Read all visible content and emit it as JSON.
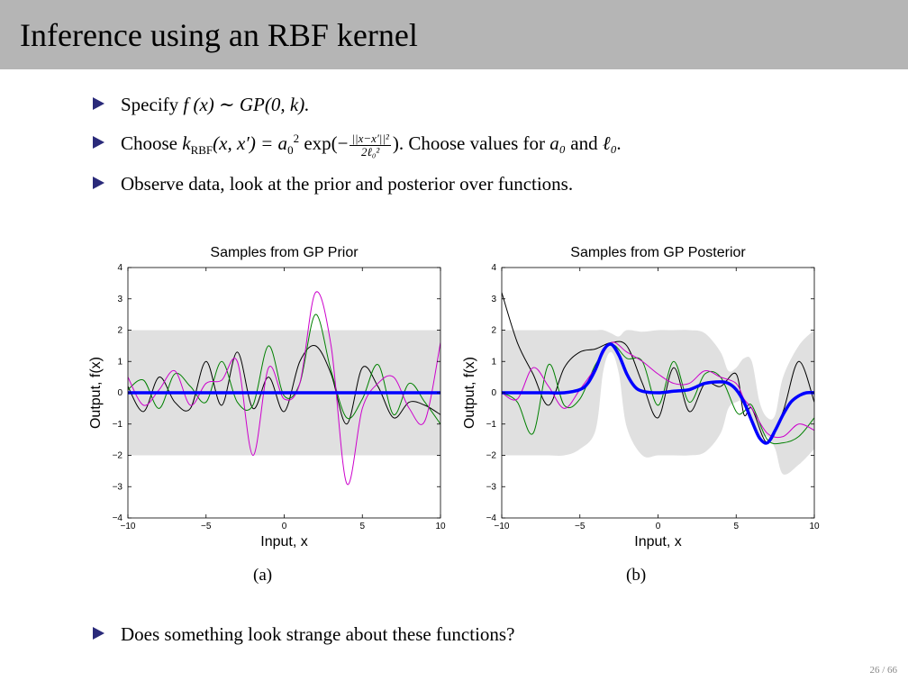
{
  "slide": {
    "title": "Inference using an RBF kernel",
    "page_number": "26 / 66"
  },
  "bullets": {
    "b1_prefix": "Specify ",
    "b1_math": "f (x) ∼ GP(0, k).",
    "b2_prefix": "Choose ",
    "b2_math_a": "k",
    "b2_sub": "RBF",
    "b2_math_b": "(x, x′) = a",
    "b2_sub0": "0",
    "b2_sup2": "2",
    "b2_math_c": " exp(−",
    "b2_frac_num": "||x−x′||²",
    "b2_frac_den": "2ℓ₀²",
    "b2_suffix": "). Choose values for ",
    "b2_a0": "a₀",
    "b2_and": " and ",
    "b2_l0": "ℓ₀.",
    "b3": "Observe data, look at the prior and posterior over functions.",
    "b4": "Does something look strange about these functions?"
  },
  "captions": {
    "a": "(a)",
    "b": "(b)"
  },
  "colors": {
    "header": "#b5b5b5",
    "band": "#e0e0e0",
    "mean": "#0000ff",
    "sample_black": "#000000",
    "sample_green": "#008000",
    "sample_magenta": "#cc00cc",
    "bullet_arrow": "#2a2a7a"
  },
  "chart_data": [
    {
      "type": "line",
      "title": "Samples from GP Prior",
      "xlabel": "Input, x",
      "ylabel": "Output, f(x)",
      "xlim": [
        -10,
        10
      ],
      "ylim": [
        -4,
        4
      ],
      "xticks": [
        "−10",
        "−5",
        "0",
        "5",
        "10"
      ],
      "yticks": [
        "−4",
        "−3",
        "−2",
        "−1",
        "0",
        "1",
        "2",
        "3",
        "4"
      ],
      "band": {
        "lower": -2,
        "upper": 2
      },
      "series": [
        {
          "color": "blue",
          "x": [
            -10,
            10
          ],
          "y": [
            0,
            0
          ]
        },
        {
          "color": "black",
          "x": [
            -10,
            -9,
            -8,
            -7,
            -6,
            -5,
            -4,
            -3,
            -2,
            -1,
            0,
            1,
            2,
            3,
            4,
            5,
            6,
            7,
            8,
            9,
            10
          ],
          "y": [
            0.2,
            -0.6,
            0.5,
            -0.3,
            -0.5,
            1.0,
            -0.4,
            1.3,
            -0.5,
            0.5,
            -0.6,
            1.0,
            1.5,
            0.6,
            -1.0,
            0.8,
            0.2,
            -0.8,
            -0.3,
            -0.4,
            -0.7
          ]
        },
        {
          "color": "green",
          "x": [
            -10,
            -9,
            -8,
            -7,
            -6,
            -5,
            -4,
            -3,
            -2,
            -1,
            0,
            1,
            2,
            3,
            4,
            5,
            6,
            7,
            8,
            9,
            10
          ],
          "y": [
            0.1,
            0.4,
            -0.5,
            0.6,
            0.2,
            -0.3,
            1.0,
            -0.3,
            -0.4,
            1.5,
            -0.1,
            0.3,
            2.5,
            0.7,
            -0.8,
            -0.2,
            0.9,
            -0.7,
            0.3,
            -0.3,
            -1.0
          ]
        },
        {
          "color": "magenta",
          "x": [
            -10,
            -9,
            -8,
            -7,
            -6,
            -5,
            -4,
            -3,
            -2,
            -1,
            0,
            1,
            2,
            3,
            4,
            5,
            6,
            7,
            8,
            9,
            10
          ],
          "y": [
            0.5,
            -0.4,
            0.1,
            0.7,
            -0.4,
            0.3,
            0.4,
            1.0,
            -2.0,
            0.8,
            -0.2,
            0.3,
            3.2,
            1.5,
            -2.9,
            -0.5,
            0.3,
            0.5,
            -0.5,
            -0.9,
            1.6
          ]
        }
      ]
    },
    {
      "type": "line",
      "title": "Samples from GP Posterior",
      "xlabel": "Input, x",
      "ylabel": "Output, f(x)",
      "xlim": [
        -10,
        10
      ],
      "ylim": [
        -4,
        4
      ],
      "xticks": [
        "−10",
        "−5",
        "0",
        "5",
        "10"
      ],
      "yticks": [
        "−4",
        "−3",
        "−2",
        "−1",
        "0",
        "1",
        "2",
        "3",
        "4"
      ],
      "band": {
        "x": [
          -10,
          -9,
          -8,
          -7,
          -6,
          -5,
          -4,
          -3.5,
          -3,
          -2.5,
          -2,
          -1,
          0,
          1,
          2,
          3,
          4,
          4.5,
          5,
          5.5,
          6,
          6.5,
          7,
          7.5,
          8,
          9,
          10
        ],
        "lower": [
          -2,
          -2,
          -2,
          -2,
          -2,
          -1.8,
          -1.2,
          0.7,
          1.3,
          0.6,
          -1.1,
          -2.0,
          -2.0,
          -2.0,
          -2.0,
          -1.9,
          -1.3,
          -0.5,
          -0.3,
          -0.3,
          -1.0,
          -1.4,
          -1.4,
          -1.8,
          -2.6,
          -2.3,
          -1.8
        ],
        "upper": [
          2,
          2,
          2,
          2,
          2,
          2,
          2.0,
          2.0,
          1.9,
          1.8,
          2.0,
          1.95,
          2.0,
          2.0,
          2.0,
          1.9,
          1.3,
          0.7,
          0.8,
          1.1,
          1.0,
          -0.3,
          -0.8,
          -0.7,
          0.5,
          1.5,
          2.0
        ]
      },
      "series": [
        {
          "color": "blue",
          "x": [
            -10,
            -9,
            -8,
            -7,
            -6,
            -5,
            -4.5,
            -4,
            -3.5,
            -3,
            -2.5,
            -2,
            -1.5,
            -1,
            0,
            1,
            2,
            3,
            4,
            4.5,
            5,
            5.5,
            6,
            6.5,
            7,
            7.5,
            8,
            8.5,
            9,
            9.5,
            10
          ],
          "y": [
            0,
            0,
            0,
            0,
            0,
            0.1,
            0.3,
            0.75,
            1.35,
            1.55,
            1.2,
            0.6,
            0.2,
            0.05,
            0,
            0.05,
            0.1,
            0.3,
            0.35,
            0.3,
            0.1,
            -0.3,
            -0.9,
            -1.45,
            -1.6,
            -1.2,
            -0.7,
            -0.3,
            -0.1,
            0,
            0
          ]
        },
        {
          "color": "black",
          "x": [
            -10,
            -9,
            -8,
            -7,
            -6,
            -5,
            -4,
            -3,
            -2,
            -1,
            0,
            1,
            2,
            3,
            4,
            5,
            5.5,
            6,
            7,
            8,
            9,
            10
          ],
          "y": [
            3.2,
            1.6,
            0.6,
            -0.4,
            0.8,
            1.3,
            1.4,
            1.6,
            1.5,
            0.3,
            -0.8,
            0.8,
            -0.6,
            0.3,
            0.2,
            0.6,
            -0.7,
            -0.5,
            -1.6,
            -0.6,
            1.0,
            -0.3
          ]
        },
        {
          "color": "green",
          "x": [
            -10,
            -9,
            -8,
            -7,
            -6,
            -5,
            -4,
            -3,
            -2,
            -1,
            0,
            1,
            2,
            3,
            4,
            5,
            5.5,
            6,
            7,
            8,
            9,
            10
          ],
          "y": [
            0,
            -0.3,
            -1.3,
            0.9,
            -0.4,
            -0.2,
            0.9,
            1.55,
            1.1,
            1.0,
            -0.4,
            1.0,
            -0.3,
            0.6,
            0.5,
            -0.6,
            -0.6,
            -0.4,
            -1.5,
            -1.6,
            -1.4,
            -0.8
          ]
        },
        {
          "color": "magenta",
          "x": [
            -10,
            -9,
            -8,
            -7,
            -6,
            -5,
            -4,
            -3,
            -2,
            -1,
            0,
            1,
            2,
            3,
            4,
            5,
            5.5,
            6,
            7,
            8,
            9,
            10
          ],
          "y": [
            0,
            -0.2,
            0.8,
            0.2,
            -0.5,
            0.1,
            0.8,
            1.6,
            1.3,
            1.0,
            0.6,
            0.3,
            0.3,
            0.7,
            0.5,
            0.3,
            -0.2,
            -0.5,
            -1.3,
            -1.4,
            -1.0,
            -1.2
          ]
        }
      ]
    }
  ]
}
